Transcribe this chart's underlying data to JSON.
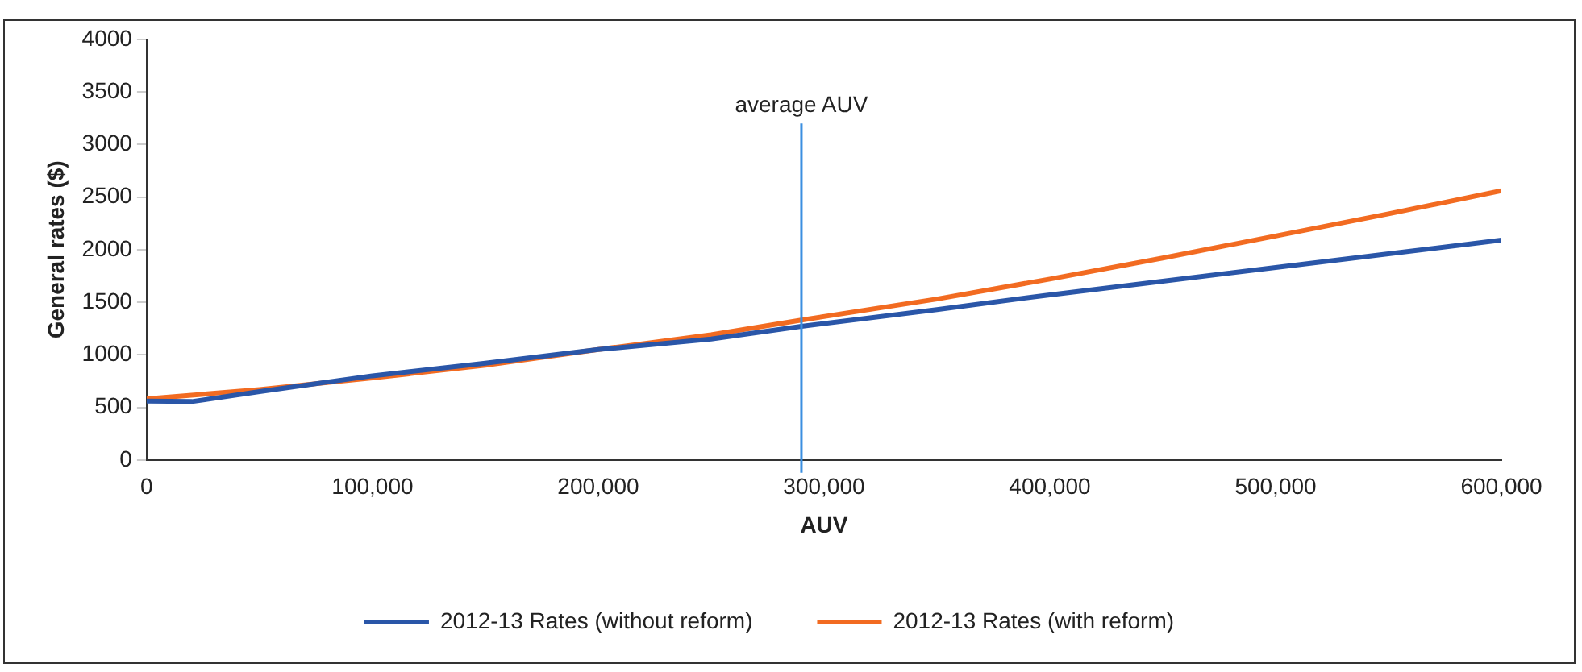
{
  "chart_data": {
    "type": "line",
    "xlabel": "AUV",
    "ylabel": "General rates ($)",
    "xlim": [
      0,
      600000
    ],
    "xticks": [
      {
        "value": 0,
        "label": "0"
      },
      {
        "value": 100000,
        "label": "100,000"
      },
      {
        "value": 200000,
        "label": "200,000"
      },
      {
        "value": 300000,
        "label": "300,000"
      },
      {
        "value": 400000,
        "label": "400,000"
      },
      {
        "value": 500000,
        "label": "500,000"
      },
      {
        "value": 600000,
        "label": "600,000"
      }
    ],
    "ylim": [
      0,
      4000
    ],
    "yticks": [
      0,
      500,
      1000,
      1500,
      2000,
      2500,
      3000,
      3500,
      4000
    ],
    "grid": false,
    "legend": "bottom",
    "marker": "none",
    "line_style": "solid",
    "series": [
      {
        "name": "2012-13 Rates (without reform)",
        "color": "#2a56a8",
        "x": [
          0,
          20000,
          50000,
          100000,
          150000,
          200000,
          250000,
          290000,
          350000,
          400000,
          450000,
          500000,
          550000,
          600000
        ],
        "values": [
          560,
          555,
          650,
          800,
          920,
          1050,
          1150,
          1270,
          1430,
          1570,
          1700,
          1830,
          1960,
          2090
        ]
      },
      {
        "name": "2012-13 Rates (with reform)",
        "color": "#f26b21",
        "x": [
          0,
          50000,
          100000,
          150000,
          200000,
          250000,
          290000,
          350000,
          400000,
          450000,
          500000,
          550000,
          600000
        ],
        "values": [
          580,
          670,
          780,
          900,
          1050,
          1190,
          1330,
          1530,
          1720,
          1920,
          2130,
          2340,
          2560
        ]
      }
    ],
    "ref_lines": [
      {
        "axis": "x",
        "value": 290000,
        "label": "average AUV",
        "color": "#3b8fe0"
      }
    ]
  }
}
